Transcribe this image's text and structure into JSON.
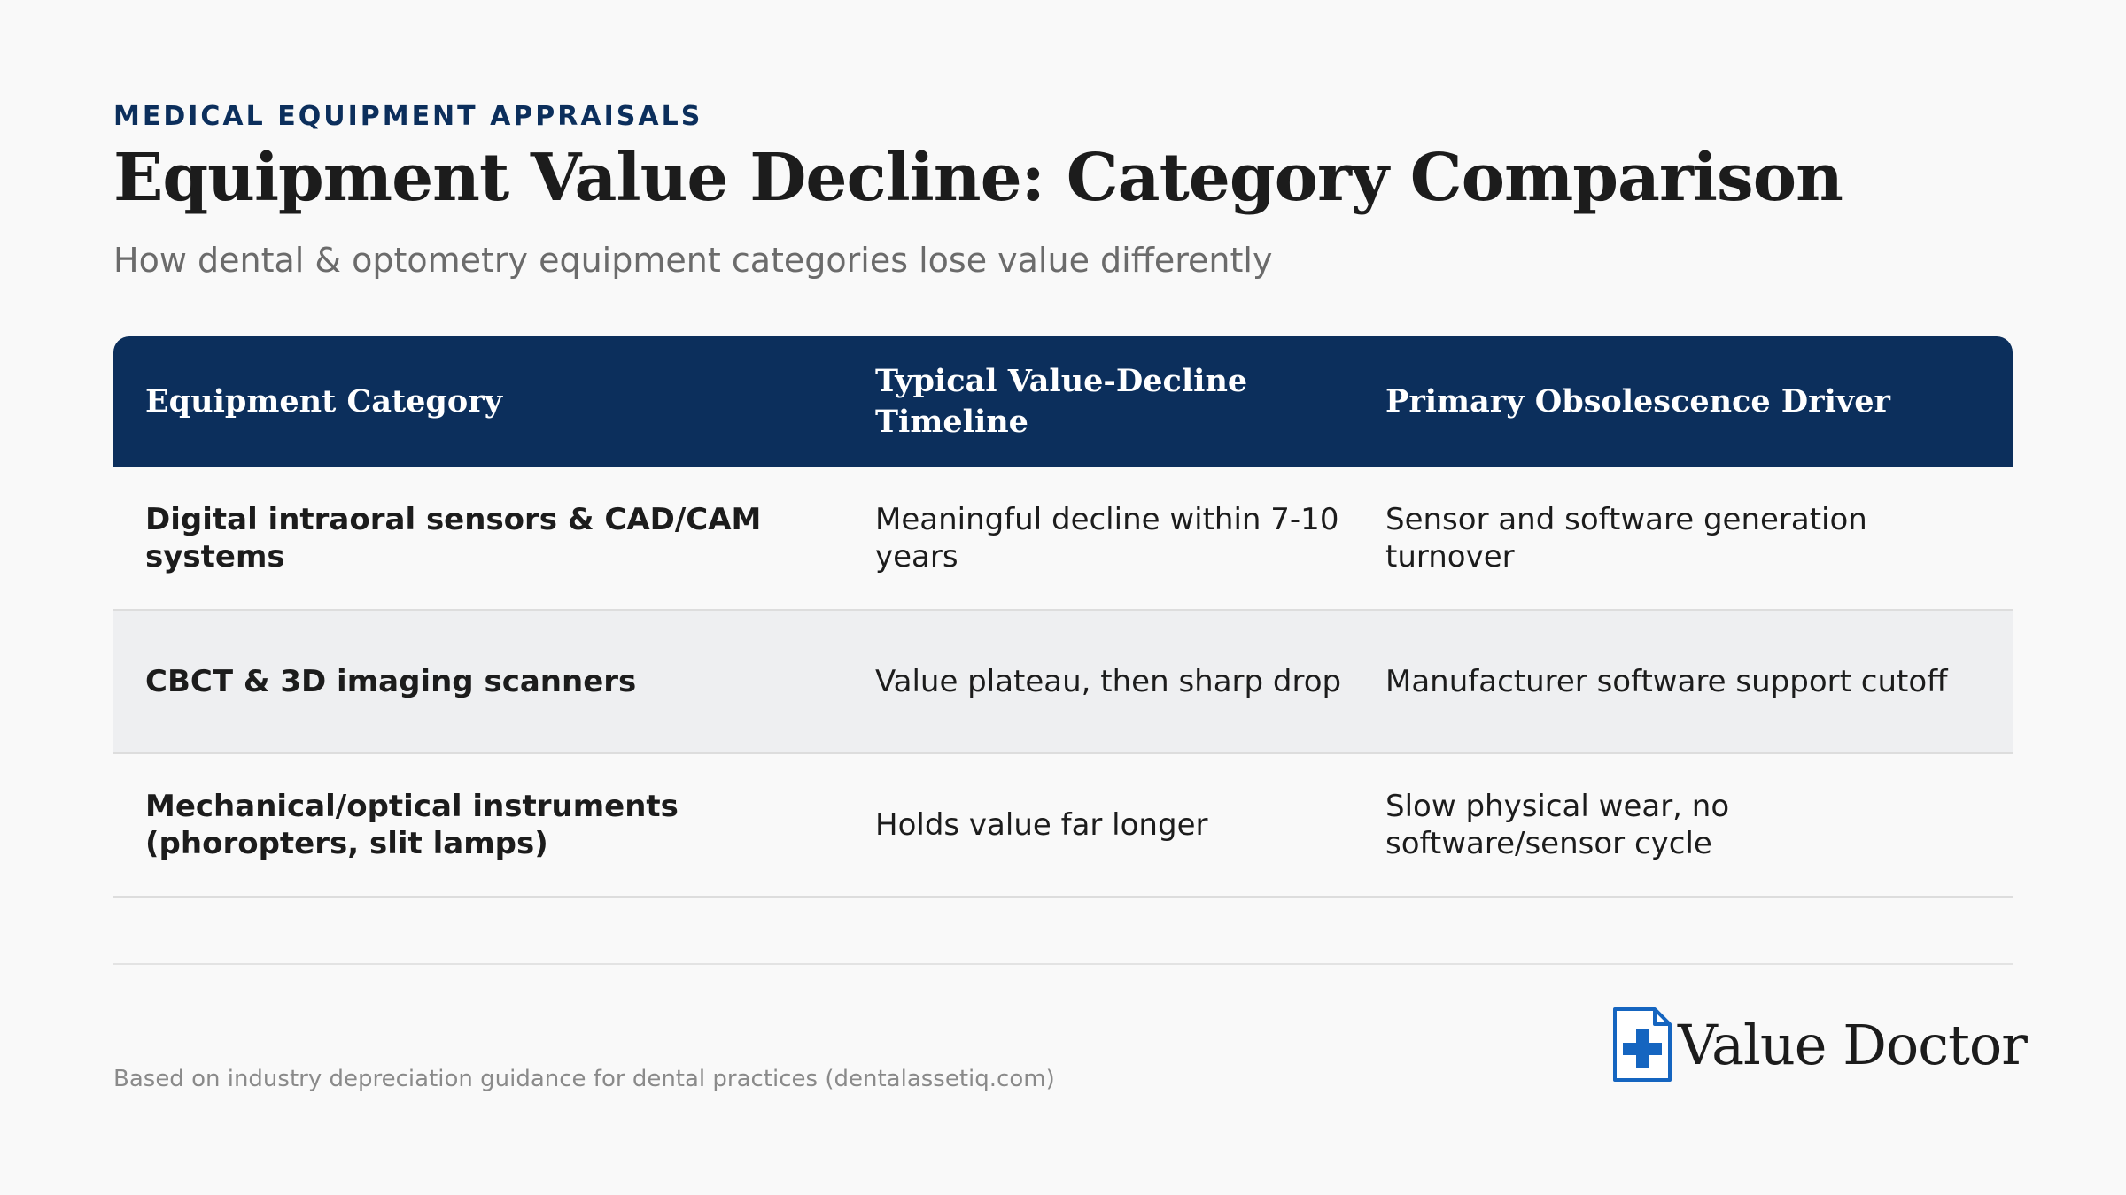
{
  "header": {
    "eyebrow": "MEDICAL EQUIPMENT APPRAISALS",
    "title": "Equipment Value Decline: Category Comparison",
    "subtitle": "How dental & optometry equipment categories lose value differently"
  },
  "table": {
    "columns": [
      "Equipment Category",
      "Typical Value-Decline Timeline",
      "Primary Obsolescence Driver"
    ],
    "rows": [
      {
        "category": "Digital intraoral sensors & CAD/CAM systems",
        "timeline": "Meaningful decline within 7-10 years",
        "driver": "Sensor and software generation turnover"
      },
      {
        "category": "CBCT & 3D imaging scanners",
        "timeline": "Value plateau, then sharp drop",
        "driver": "Manufacturer software support cutoff"
      },
      {
        "category": "Mechanical/optical instruments (phoropters, slit lamps)",
        "timeline": "Holds value far longer",
        "driver": "Slow physical wear, no software/sensor cycle"
      }
    ]
  },
  "footer": {
    "source": "Based on industry depreciation guidance for dental practices (dentalassetiq.com)",
    "logo_text": "Value Doctor",
    "logo_icon": "document-cross-icon"
  },
  "colors": {
    "header_bg": "#0c2f5c",
    "accent": "#1565c0",
    "alt_row": "#eeeff1",
    "page_bg": "#f9f9f9"
  }
}
